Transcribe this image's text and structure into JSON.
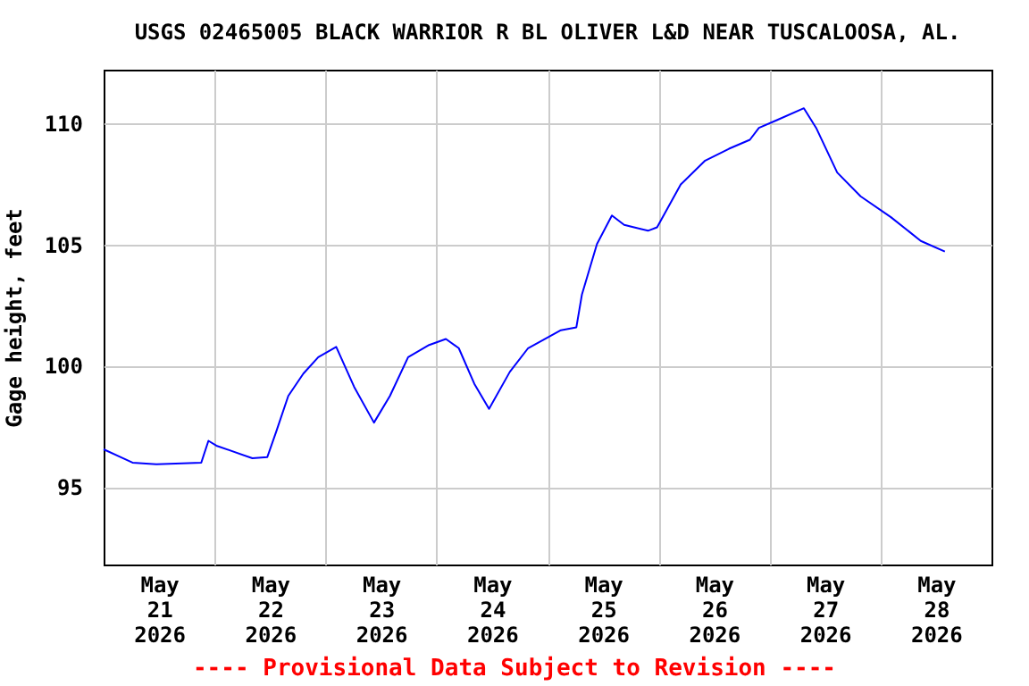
{
  "chart_data": {
    "type": "line",
    "title": "USGS 02465005 BLACK WARRIOR R BL OLIVER L&D NEAR TUSCALOOSA, AL.",
    "ylabel": "Gage height, feet",
    "annotations": [
      "---- Provisional Data Subject to Revision ----"
    ],
    "series": [
      {
        "color": "#0000ff",
        "x": [
          "2026-05-21T00:00",
          "2026-05-21T06:15",
          "2026-05-21T11:24",
          "2026-05-21T21:07",
          "2026-05-21T22:40",
          "2026-05-22T00:23",
          "2026-05-22T08:10",
          "2026-05-22T11:24",
          "2026-05-22T13:20",
          "2026-05-22T15:56",
          "2026-05-22T19:12",
          "2026-05-22T22:25",
          "2026-05-23T02:18",
          "2026-05-23T06:11",
          "2026-05-23T10:28",
          "2026-05-23T13:55",
          "2026-05-23T17:51",
          "2026-05-23T22:24",
          "2026-05-24T02:01",
          "2026-05-24T04:48",
          "2026-05-24T08:10",
          "2026-05-24T11:21",
          "2026-05-24T15:50",
          "2026-05-24T19:48",
          "2026-05-25T02:53",
          "2026-05-25T06:14",
          "2026-05-25T07:26",
          "2026-05-25T10:41",
          "2026-05-25T13:55",
          "2026-05-25T16:34",
          "2026-05-25T21:43",
          "2026-05-25T23:41",
          "2026-05-26T04:48",
          "2026-05-26T10:05",
          "2026-05-26T15:14",
          "2026-05-26T19:45",
          "2026-05-26T21:43",
          "2026-05-27T01:35",
          "2026-05-27T07:26",
          "2026-05-27T10:05",
          "2026-05-27T14:38",
          "2026-05-27T19:41",
          "2026-05-28T02:15",
          "2026-05-28T08:43",
          "2026-05-28T13:55"
        ],
        "values": [
          96.55,
          96.0,
          95.93,
          96.0,
          96.9,
          96.7,
          96.18,
          96.23,
          97.28,
          98.75,
          99.67,
          100.35,
          100.77,
          99.12,
          97.65,
          98.75,
          100.35,
          100.85,
          101.1,
          100.72,
          99.25,
          98.22,
          99.74,
          100.72,
          101.46,
          101.58,
          102.93,
          105.01,
          106.19,
          105.8,
          105.56,
          105.7,
          107.47,
          108.45,
          108.94,
          109.31,
          109.8,
          110.12,
          110.61,
          109.8,
          107.96,
          106.98,
          106.12,
          105.14,
          104.7
        ]
      }
    ],
    "xlim": [
      "2026-05-21T00:00",
      "2026-05-29T00:00"
    ],
    "xticks": [
      {
        "value": "2026-05-21T12:00",
        "label": "May 21 2026"
      },
      {
        "value": "2026-05-22T12:00",
        "label": "May 22 2026"
      },
      {
        "value": "2026-05-23T12:00",
        "label": "May 23 2026"
      },
      {
        "value": "2026-05-24T12:00",
        "label": "May 24 2026"
      },
      {
        "value": "2026-05-25T12:00",
        "label": "May 25 2026"
      },
      {
        "value": "2026-05-26T12:00",
        "label": "May 26 2026"
      },
      {
        "value": "2026-05-27T12:00",
        "label": "May 27 2026"
      },
      {
        "value": "2026-05-28T12:00",
        "label": "May 28 2026"
      },
      {
        "value": "2026-05-22T00:00",
        "label": null
      },
      {
        "value": "2026-05-23T00:00",
        "label": null
      },
      {
        "value": "2026-05-24T00:00",
        "label": null
      },
      {
        "value": "2026-05-25T00:00",
        "label": null
      },
      {
        "value": "2026-05-26T00:00",
        "label": null
      },
      {
        "value": "2026-05-27T00:00",
        "label": null
      },
      {
        "value": "2026-05-28T00:00",
        "label": null
      }
    ],
    "ylim": [
      91.8,
      112.2
    ],
    "yticks": [
      95,
      100,
      105,
      110
    ],
    "grid": true,
    "legend": false,
    "marker": "none",
    "line_style": "solid"
  }
}
